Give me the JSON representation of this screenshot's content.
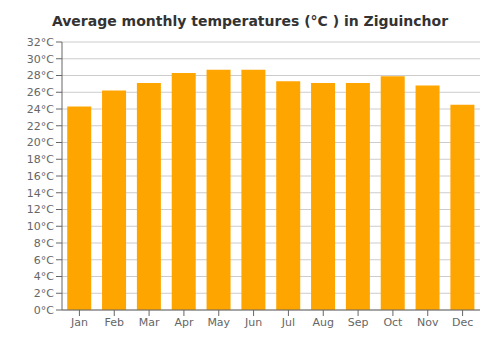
{
  "chart_data": {
    "type": "bar",
    "title": "Average monthly temperatures (°C ) in Ziguinchor",
    "categories": [
      "Jan",
      "Feb",
      "Mar",
      "Apr",
      "May",
      "Jun",
      "Jul",
      "Aug",
      "Sep",
      "Oct",
      "Nov",
      "Dec"
    ],
    "values": [
      24.3,
      26.2,
      27.1,
      28.3,
      28.7,
      28.7,
      27.3,
      27.1,
      27.1,
      27.9,
      26.8,
      24.5
    ],
    "color": "#FFA500",
    "ylim": [
      0,
      32
    ],
    "yticks": [
      {
        "value": 0,
        "label": "0°C"
      },
      {
        "value": 2,
        "label": "2°C"
      },
      {
        "value": 4,
        "label": "4°C"
      },
      {
        "value": 6,
        "label": "6°C"
      },
      {
        "value": 8,
        "label": "8°C"
      },
      {
        "value": 10,
        "label": "10°C"
      },
      {
        "value": 12,
        "label": "12°C"
      },
      {
        "value": 14,
        "label": "14°C"
      },
      {
        "value": 16,
        "label": "16°C"
      },
      {
        "value": 18,
        "label": "18°C"
      },
      {
        "value": 20,
        "label": "20°C"
      },
      {
        "value": 22,
        "label": "22°C"
      },
      {
        "value": 24,
        "label": "24°C"
      },
      {
        "value": 26,
        "label": "26°C"
      },
      {
        "value": 28,
        "label": "28°C"
      },
      {
        "value": 30,
        "label": "30°C"
      },
      {
        "value": 32,
        "label": "32°C"
      }
    ],
    "grid": true
  }
}
